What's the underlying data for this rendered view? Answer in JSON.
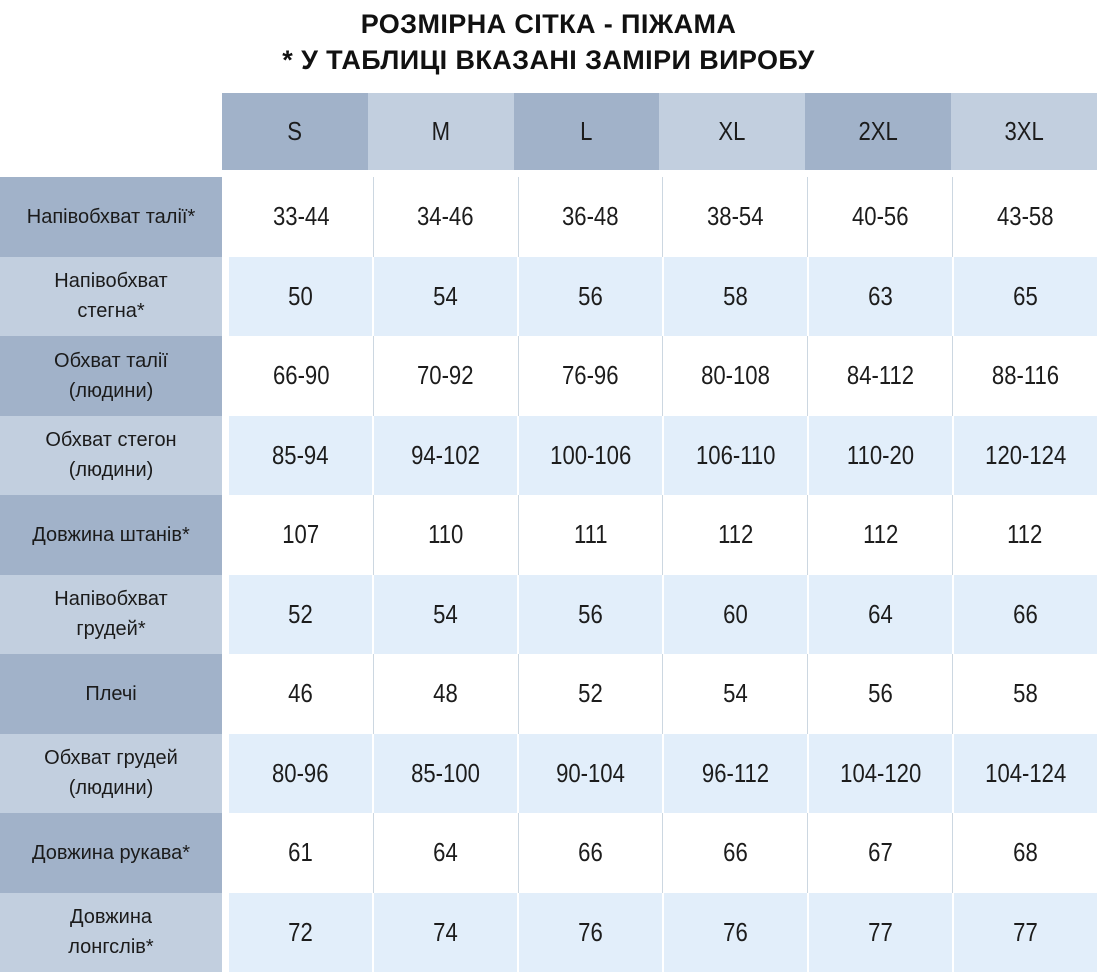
{
  "title": {
    "line1": "РОЗМІРНА СІТКА - ПІЖАМА",
    "line2": "* У ТАБЛИЦІ ВКАЗАНІ ЗАМІРИ ВИРОБУ"
  },
  "colors": {
    "header_dark": "#a1b2c9",
    "header_light": "#c2cfdf",
    "label_dark": "#a1b2c9",
    "label_light": "#c2cfdf",
    "row_white": "#ffffff",
    "row_blue": "#e2eefa",
    "divider": "#ccd7e1"
  },
  "chart_data": {
    "type": "table",
    "title": "РОЗМІРНА СІТКА - ПІЖАМА",
    "note": "* У ТАБЛИЦІ ВКАЗАНІ ЗАМІРИ ВИРОБУ",
    "columns": [
      "S",
      "M",
      "L",
      "XL",
      "2XL",
      "3XL"
    ],
    "rows": [
      {
        "label": "Напівобхват талії*",
        "values": [
          "33-44",
          "34-46",
          "36-48",
          "38-54",
          "40-56",
          "43-58"
        ]
      },
      {
        "label": "Напівобхват\nстегна*",
        "values": [
          "50",
          "54",
          "56",
          "58",
          "63",
          "65"
        ]
      },
      {
        "label": "Обхват талії\n(людини)",
        "values": [
          "66-90",
          "70-92",
          "76-96",
          "80-108",
          "84-112",
          "88-116"
        ]
      },
      {
        "label": "Обхват стегон\n(людини)",
        "values": [
          "85-94",
          "94-102",
          "100-106",
          "106-110",
          "110-20",
          "120-124"
        ]
      },
      {
        "label": "Довжина штанів*",
        "values": [
          "107",
          "110",
          "111",
          "112",
          "112",
          "112"
        ]
      },
      {
        "label": "Напівобхват\nгрудей*",
        "values": [
          "52",
          "54",
          "56",
          "60",
          "64",
          "66"
        ]
      },
      {
        "label": "Плечі",
        "values": [
          "46",
          "48",
          "52",
          "54",
          "56",
          "58"
        ]
      },
      {
        "label": "Обхват грудей\n(людини)",
        "values": [
          "80-96",
          "85-100",
          "90-104",
          "96-112",
          "104-120",
          "104-124"
        ]
      },
      {
        "label": "Довжина рукава*",
        "values": [
          "61",
          "64",
          "66",
          "66",
          "67",
          "68"
        ]
      },
      {
        "label": "Довжина\nлонгслів*",
        "values": [
          "72",
          "74",
          "76",
          "76",
          "77",
          "77"
        ]
      }
    ]
  }
}
